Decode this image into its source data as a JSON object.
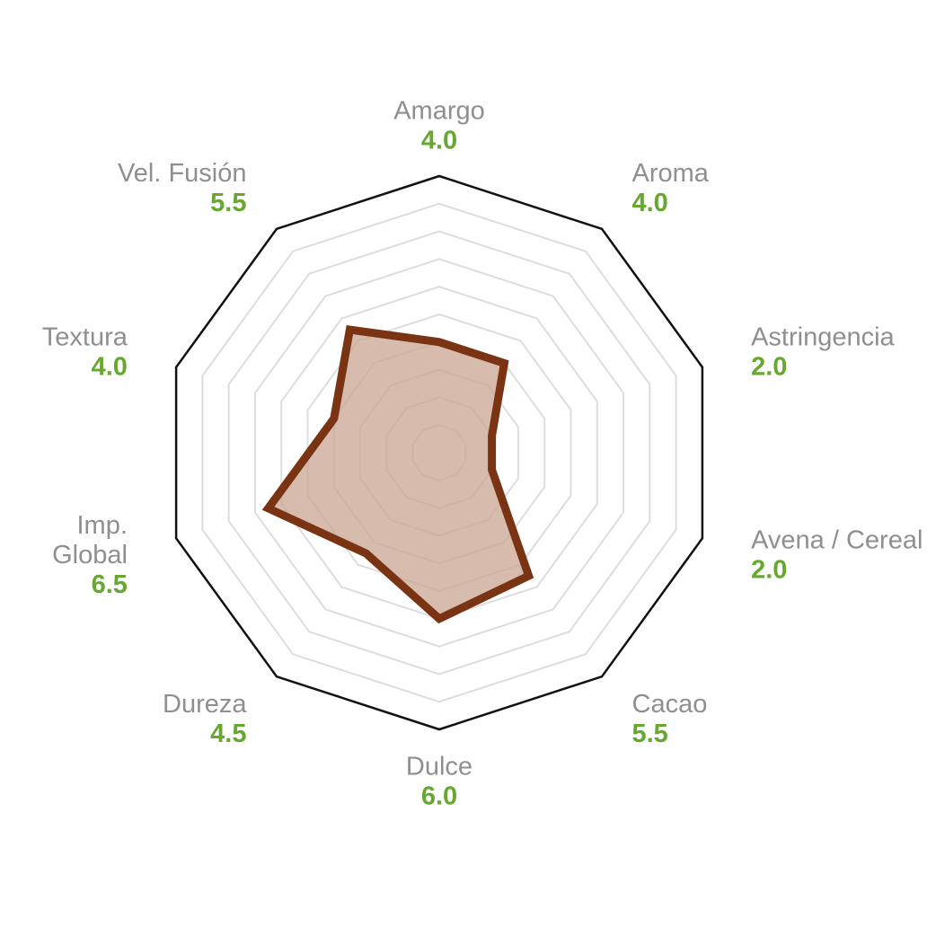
{
  "chart_data": {
    "type": "radar",
    "scale_max": 10,
    "rings": 10,
    "axes": [
      {
        "label": "Amargo",
        "value": 4.0,
        "value_text": "4.0"
      },
      {
        "label": "Aroma",
        "value": 4.0,
        "value_text": "4.0"
      },
      {
        "label": "Astringencia",
        "value": 2.0,
        "value_text": "2.0"
      },
      {
        "label": "Avena / Cereal",
        "value": 2.0,
        "value_text": "2.0"
      },
      {
        "label": "Cacao",
        "value": 5.5,
        "value_text": "5.5"
      },
      {
        "label": "Dulce",
        "value": 6.0,
        "value_text": "6.0"
      },
      {
        "label": "Dureza",
        "value": 4.5,
        "value_text": "4.5"
      },
      {
        "label": "Imp.\nGlobal",
        "value": 6.5,
        "value_text": "6.5"
      },
      {
        "label": "Textura",
        "value": 4.0,
        "value_text": "4.0"
      },
      {
        "label": "Vel. Fusión",
        "value": 5.5,
        "value_text": "5.5"
      }
    ],
    "colors": {
      "series_stroke": "#7a3414",
      "series_fill": "#c9a492",
      "outer_frame": "#111111",
      "grid": "#dddddd",
      "label": "#8f8f8f",
      "value": "#66a830"
    }
  }
}
